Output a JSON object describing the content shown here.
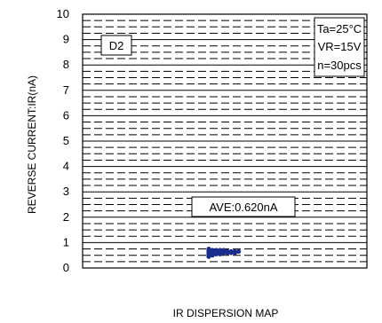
{
  "chart_data": {
    "type": "scatter",
    "ylabel": "REVERSE CURRENT:IR(nA)",
    "xlabel": "IR DISPERSION MAP",
    "ylim": [
      0,
      10
    ],
    "yticks": [
      0,
      1,
      2,
      3,
      4,
      5,
      6,
      7,
      8,
      9,
      10
    ],
    "grid": true,
    "gridStyle": "dashed-minor",
    "sample_label": "D2",
    "conditions": [
      "Ta=25°C",
      "VR=15V",
      "n=30pcs"
    ],
    "average_label": "AVE:0.620nA",
    "point_color": "#1a2c8c",
    "values": [
      0.45,
      0.5,
      0.52,
      0.55,
      0.56,
      0.58,
      0.6,
      0.6,
      0.61,
      0.62,
      0.62,
      0.63,
      0.63,
      0.64,
      0.65,
      0.65,
      0.66,
      0.67,
      0.68,
      0.7,
      0.7,
      0.72,
      0.55,
      0.57,
      0.59,
      0.61,
      0.64,
      0.66,
      0.69,
      0.74
    ]
  }
}
